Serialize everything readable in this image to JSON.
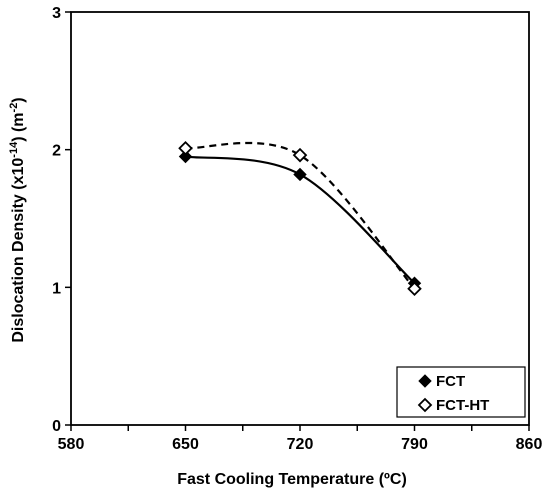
{
  "chart_data": {
    "type": "scatter",
    "xlabel": "Fast Cooling Temperature (ºC)",
    "ylabel_parts": [
      "Dislocation Density (x10",
      "-14",
      ") (m",
      "-2",
      ")"
    ],
    "xlim": [
      580,
      860
    ],
    "ylim": [
      0,
      3
    ],
    "xticks": [
      580,
      650,
      720,
      790,
      860
    ],
    "yticks": [
      0,
      1,
      2,
      3
    ],
    "grid": false,
    "legend_position": "bottom-right",
    "series": [
      {
        "name": "FCT",
        "marker": "filled-diamond",
        "line": "solid",
        "color": "#000000",
        "x": [
          650,
          720,
          790
        ],
        "y": [
          1.95,
          1.82,
          1.03
        ]
      },
      {
        "name": "FCT-HT",
        "marker": "open-diamond",
        "line": "dashed",
        "color": "#000000",
        "x": [
          650,
          720,
          790
        ],
        "y": [
          2.01,
          1.96,
          0.99
        ]
      }
    ]
  }
}
